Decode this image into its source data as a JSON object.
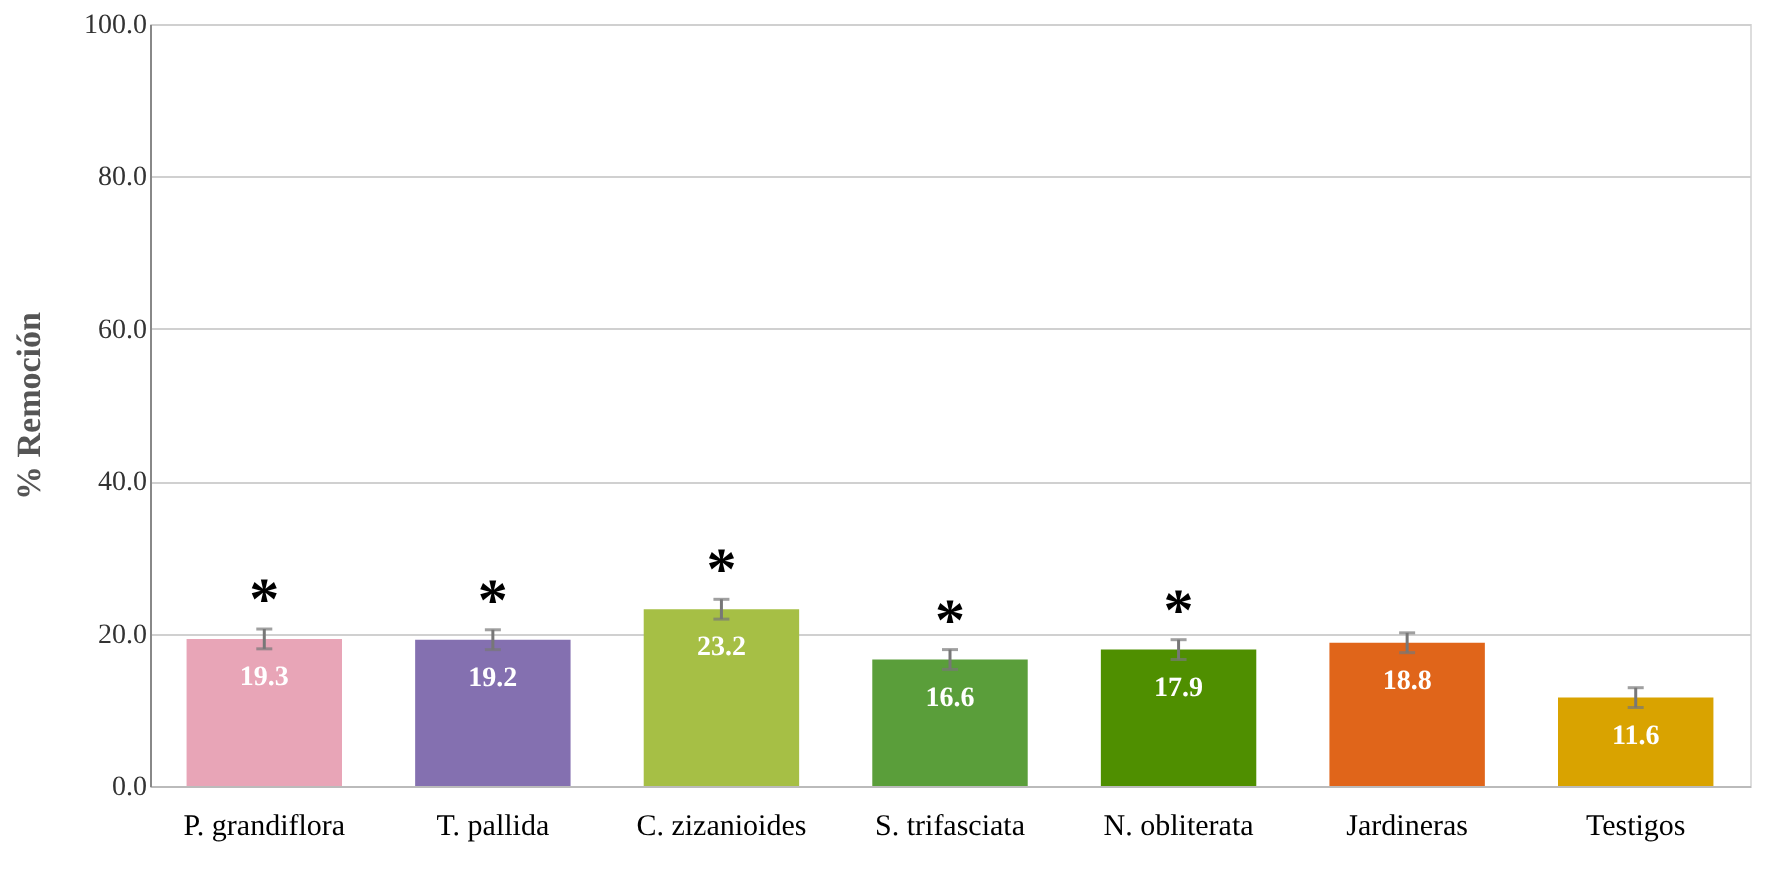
{
  "chart_data": {
    "type": "bar",
    "ylabel": "% Remoción",
    "categories": [
      "P. grandiflora",
      "T.  pallida",
      "C. zizanioides",
      "S. trifasciata",
      "N. obliterata",
      "Jardineras",
      "Testigos"
    ],
    "values": [
      19.3,
      19.2,
      23.2,
      16.6,
      17.9,
      18.8,
      11.6
    ],
    "colors": [
      "#e8a5b7",
      "#8470b0",
      "#a6bf45",
      "#5a9e3a",
      "#4f8f00",
      "#e0651a",
      "#d9a300"
    ],
    "errors": [
      1.3,
      1.3,
      1.3,
      1.3,
      1.3,
      1.3,
      1.3
    ],
    "data_labels": true,
    "ylim": [
      0,
      100
    ],
    "yticks": [
      {
        "value": 0,
        "label": "0.0"
      },
      {
        "value": 20,
        "label": "20.0"
      },
      {
        "value": 40,
        "label": "40.0"
      },
      {
        "value": 60,
        "label": "60.0"
      },
      {
        "value": 80,
        "label": "80.0"
      },
      {
        "value": 100,
        "label": "100.0"
      }
    ],
    "grid": "y",
    "annotations": [
      "*",
      "*",
      "*",
      "*",
      "*"
    ]
  }
}
